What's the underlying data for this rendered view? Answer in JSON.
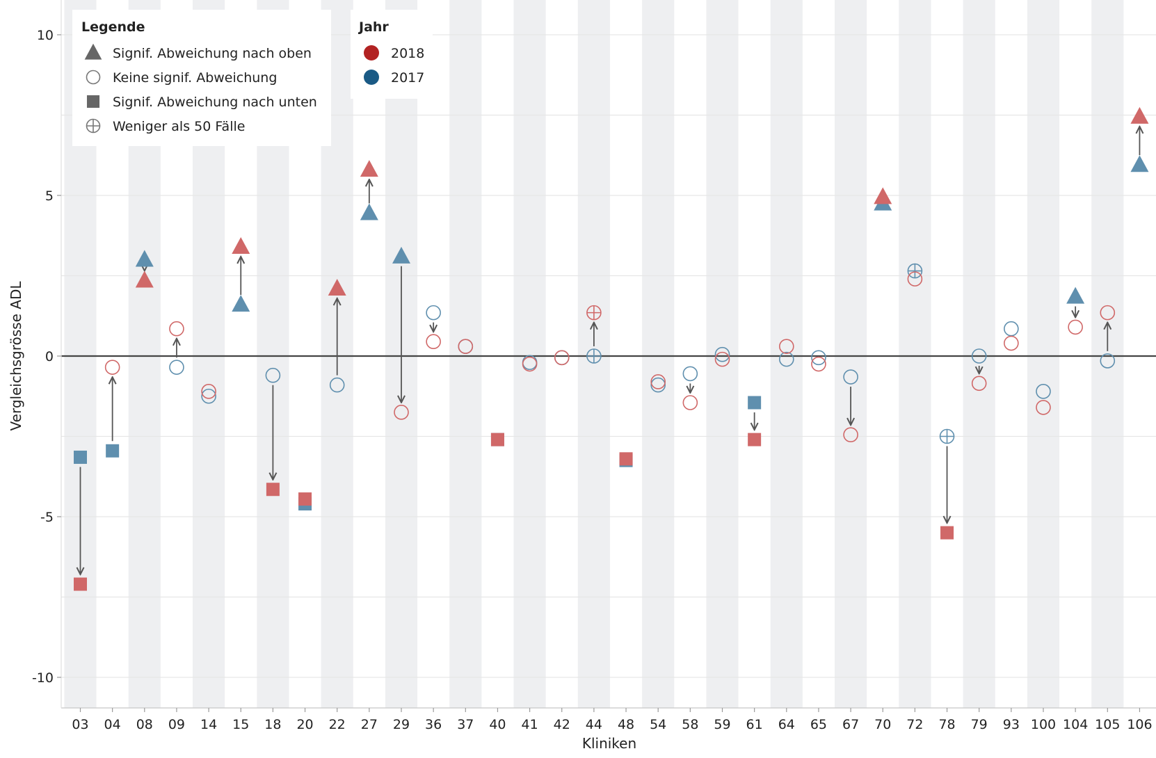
{
  "chart_data": {
    "type": "scatter",
    "xlabel": "Kliniken",
    "ylabel": "Vergleichsgrösse ADL",
    "ylim": [
      -11,
      11
    ],
    "yticks": [
      10,
      5,
      0,
      -5,
      -10
    ],
    "grid": true,
    "legend_placement": "top-left",
    "categories": [
      "03",
      "04",
      "08",
      "09",
      "14",
      "15",
      "18",
      "20",
      "22",
      "27",
      "29",
      "36",
      "37",
      "40",
      "41",
      "42",
      "44",
      "48",
      "54",
      "58",
      "59",
      "61",
      "64",
      "65",
      "67",
      "70",
      "72",
      "78",
      "79",
      "93",
      "100",
      "104",
      "105",
      "106"
    ],
    "legend": {
      "shape_title": "Legende",
      "shape_entries": [
        {
          "marker": "triangle",
          "label": "Signif. Abweichung nach oben"
        },
        {
          "marker": "circle",
          "label": "Keine signif. Abweichung"
        },
        {
          "marker": "square",
          "label": "Signif. Abweichung nach unten"
        },
        {
          "marker": "crossed-circle",
          "label": "Weniger als 50 Fälle"
        }
      ],
      "year_title": "Jahr",
      "year_entries": [
        {
          "label": "2018",
          "color": "#b22222"
        },
        {
          "label": "2017",
          "color": "#1a5a85"
        }
      ]
    },
    "colors": {
      "2018": "#d06868",
      "2017": "#5f8fae",
      "2018_legend": "#b22222",
      "2017_legend": "#1a5a85",
      "arrow": "#555555",
      "zero_line": "#444444",
      "band": "#eeeff1"
    },
    "series": [
      {
        "name": "2017",
        "points": [
          {
            "x": "03",
            "y": -3.15,
            "marker": "square"
          },
          {
            "x": "04",
            "y": -2.95,
            "marker": "square"
          },
          {
            "x": "08",
            "y": 3.0,
            "marker": "triangle"
          },
          {
            "x": "09",
            "y": -0.35,
            "marker": "circle"
          },
          {
            "x": "14",
            "y": -1.25,
            "marker": "circle"
          },
          {
            "x": "15",
            "y": 1.6,
            "marker": "triangle"
          },
          {
            "x": "18",
            "y": -0.6,
            "marker": "circle"
          },
          {
            "x": "20",
            "y": -4.6,
            "marker": "square"
          },
          {
            "x": "22",
            "y": -0.9,
            "marker": "circle"
          },
          {
            "x": "27",
            "y": 4.45,
            "marker": "triangle"
          },
          {
            "x": "29",
            "y": 3.1,
            "marker": "triangle"
          },
          {
            "x": "36",
            "y": 1.35,
            "marker": "circle"
          },
          {
            "x": "37",
            "y": 0.3,
            "marker": "circle"
          },
          {
            "x": "40",
            "y": -2.6,
            "marker": "square"
          },
          {
            "x": "41",
            "y": -0.2,
            "marker": "circle"
          },
          {
            "x": "42",
            "y": -0.05,
            "marker": "circle"
          },
          {
            "x": "44",
            "y": 0.0,
            "marker": "crossed-circle"
          },
          {
            "x": "48",
            "y": -3.25,
            "marker": "square"
          },
          {
            "x": "54",
            "y": -0.9,
            "marker": "circle"
          },
          {
            "x": "58",
            "y": -0.55,
            "marker": "circle"
          },
          {
            "x": "59",
            "y": 0.05,
            "marker": "circle"
          },
          {
            "x": "61",
            "y": -1.45,
            "marker": "square"
          },
          {
            "x": "64",
            "y": -0.1,
            "marker": "circle"
          },
          {
            "x": "65",
            "y": -0.05,
            "marker": "circle"
          },
          {
            "x": "67",
            "y": -0.65,
            "marker": "circle"
          },
          {
            "x": "70",
            "y": 4.75,
            "marker": "triangle"
          },
          {
            "x": "72",
            "y": 2.65,
            "marker": "crossed-circle"
          },
          {
            "x": "78",
            "y": -2.5,
            "marker": "crossed-circle"
          },
          {
            "x": "79",
            "y": 0.0,
            "marker": "circle"
          },
          {
            "x": "93",
            "y": 0.85,
            "marker": "circle"
          },
          {
            "x": "100",
            "y": -1.1,
            "marker": "circle"
          },
          {
            "x": "104",
            "y": 1.85,
            "marker": "triangle"
          },
          {
            "x": "105",
            "y": -0.15,
            "marker": "circle"
          },
          {
            "x": "106",
            "y": 5.95,
            "marker": "triangle"
          }
        ]
      },
      {
        "name": "2018",
        "points": [
          {
            "x": "03",
            "y": -7.1,
            "marker": "square"
          },
          {
            "x": "04",
            "y": -0.35,
            "marker": "circle"
          },
          {
            "x": "08",
            "y": 2.35,
            "marker": "triangle"
          },
          {
            "x": "09",
            "y": 0.85,
            "marker": "circle"
          },
          {
            "x": "14",
            "y": -1.1,
            "marker": "circle"
          },
          {
            "x": "15",
            "y": 3.4,
            "marker": "triangle"
          },
          {
            "x": "18",
            "y": -4.15,
            "marker": "square"
          },
          {
            "x": "20",
            "y": -4.45,
            "marker": "square"
          },
          {
            "x": "22",
            "y": 2.1,
            "marker": "triangle"
          },
          {
            "x": "27",
            "y": 5.8,
            "marker": "triangle"
          },
          {
            "x": "29",
            "y": -1.75,
            "marker": "circle"
          },
          {
            "x": "36",
            "y": 0.45,
            "marker": "circle"
          },
          {
            "x": "37",
            "y": 0.3,
            "marker": "circle"
          },
          {
            "x": "40",
            "y": -2.6,
            "marker": "square"
          },
          {
            "x": "41",
            "y": -0.25,
            "marker": "circle"
          },
          {
            "x": "42",
            "y": -0.05,
            "marker": "circle"
          },
          {
            "x": "44",
            "y": 1.35,
            "marker": "crossed-circle"
          },
          {
            "x": "48",
            "y": -3.2,
            "marker": "square"
          },
          {
            "x": "54",
            "y": -0.8,
            "marker": "circle"
          },
          {
            "x": "58",
            "y": -1.45,
            "marker": "circle"
          },
          {
            "x": "59",
            "y": -0.1,
            "marker": "circle"
          },
          {
            "x": "61",
            "y": -2.6,
            "marker": "square"
          },
          {
            "x": "64",
            "y": 0.3,
            "marker": "circle"
          },
          {
            "x": "65",
            "y": -0.25,
            "marker": "circle"
          },
          {
            "x": "67",
            "y": -2.45,
            "marker": "circle"
          },
          {
            "x": "70",
            "y": 4.95,
            "marker": "triangle"
          },
          {
            "x": "72",
            "y": 2.4,
            "marker": "circle"
          },
          {
            "x": "78",
            "y": -5.5,
            "marker": "square"
          },
          {
            "x": "79",
            "y": -0.85,
            "marker": "circle"
          },
          {
            "x": "93",
            "y": 0.4,
            "marker": "circle"
          },
          {
            "x": "100",
            "y": -1.6,
            "marker": "circle"
          },
          {
            "x": "104",
            "y": 0.9,
            "marker": "circle"
          },
          {
            "x": "105",
            "y": 1.35,
            "marker": "circle"
          },
          {
            "x": "106",
            "y": 7.45,
            "marker": "triangle"
          }
        ]
      }
    ]
  }
}
